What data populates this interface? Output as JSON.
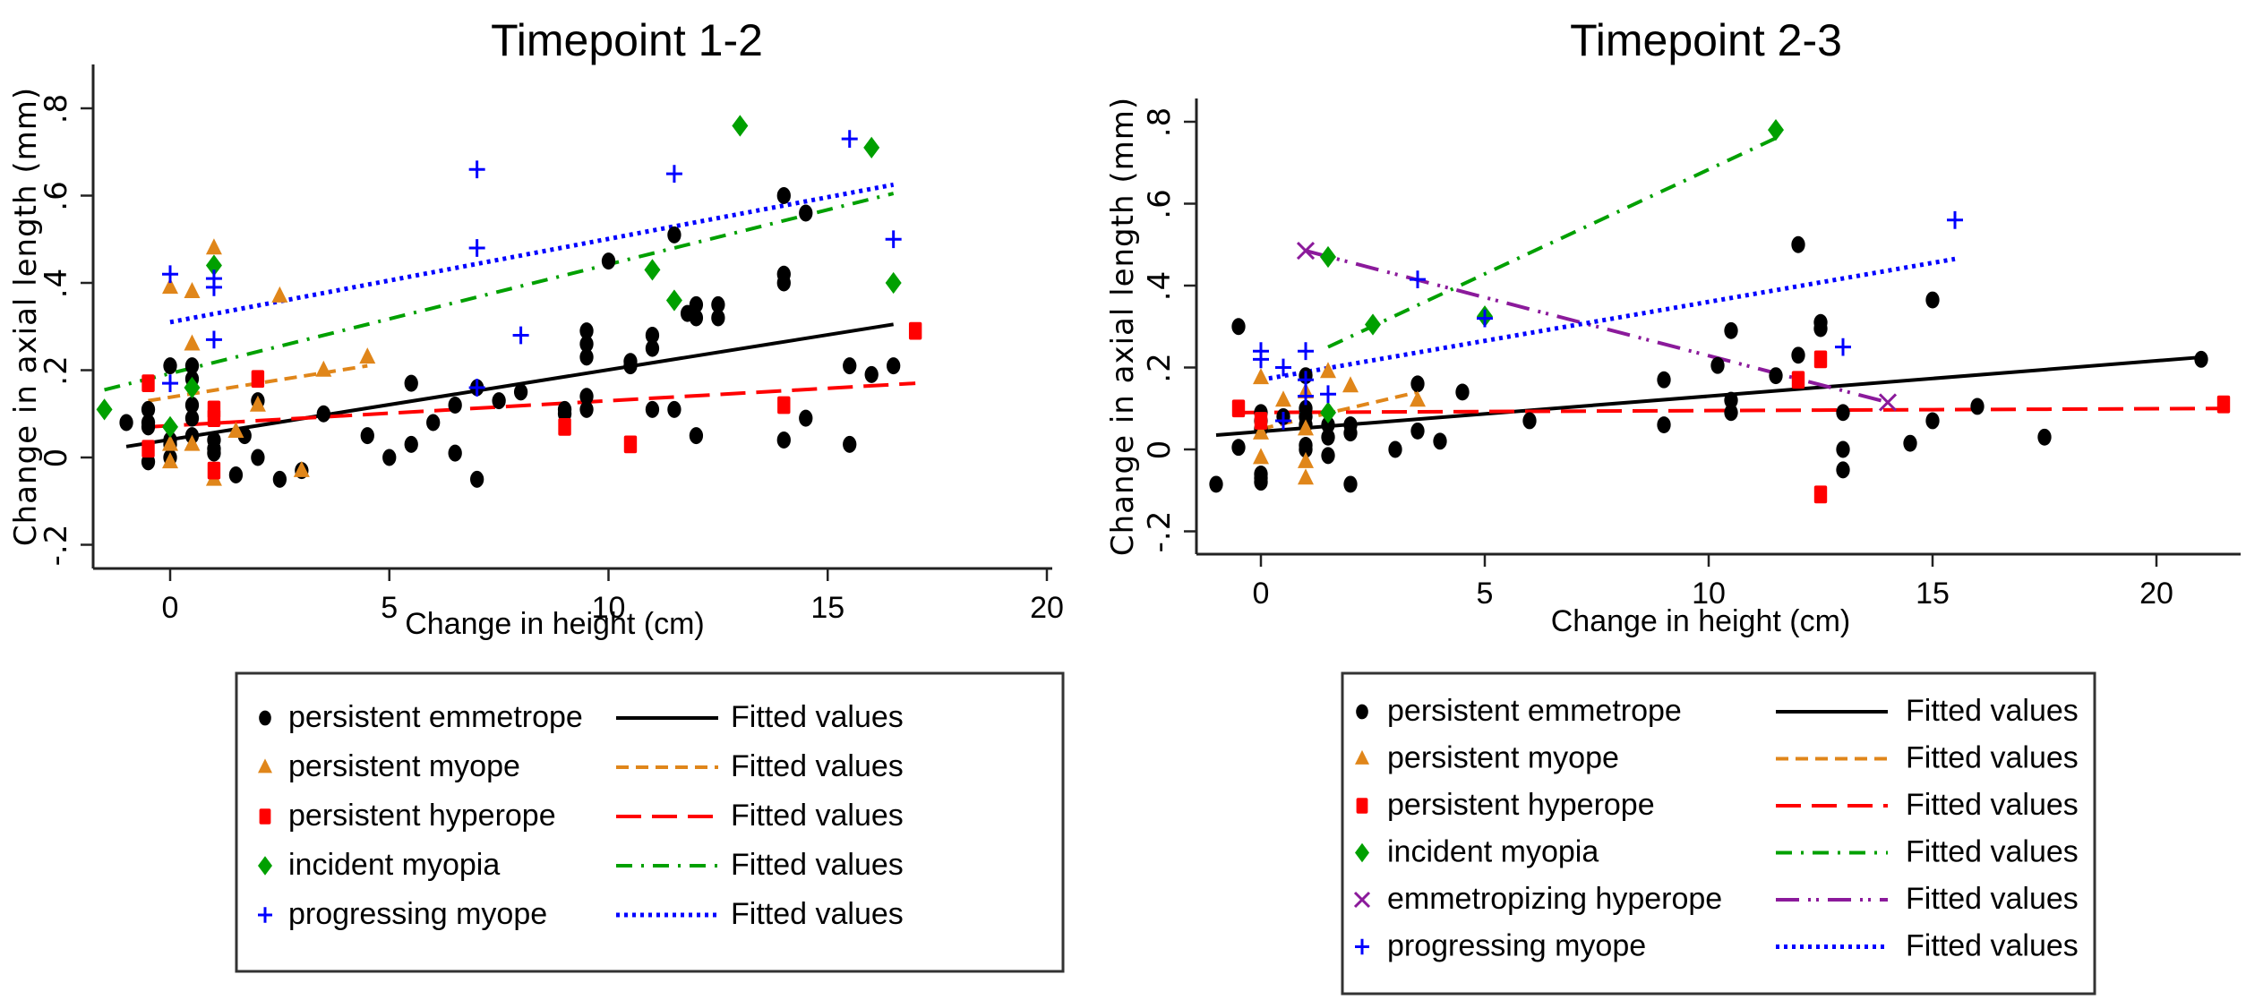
{
  "chart_data": [
    {
      "type": "scatter",
      "title": "Timepoint 1-2",
      "xlabel": "Change in height (cm)",
      "ylabel": "Change in axial length (mm)",
      "xlim": [
        -2,
        20
      ],
      "ylim": [
        -0.25,
        0.85
      ],
      "xticks": [
        0,
        5,
        10,
        15,
        20
      ],
      "xtick_labels": [
        "0",
        "5",
        "10",
        "15",
        "20"
      ],
      "yticks": [
        -0.2,
        0,
        0.2,
        0.4,
        0.6,
        0.8
      ],
      "ytick_labels": [
        "-.2",
        "0",
        ".2",
        ".4",
        ".6",
        ".8"
      ],
      "grid": false,
      "legend_position": "bottom",
      "series": [
        {
          "name": "persistent emmetrope",
          "marker": "circle",
          "color": "#000000",
          "points": [
            [
              -1,
              0.08
            ],
            [
              -0.5,
              0.11
            ],
            [
              -0.5,
              0.08
            ],
            [
              -0.5,
              0.07
            ],
            [
              -0.5,
              -0.01
            ],
            [
              0,
              0.21
            ],
            [
              0,
              0.04
            ],
            [
              0,
              0.03
            ],
            [
              0,
              0.0
            ],
            [
              0.5,
              0.21
            ],
            [
              0.5,
              0.18
            ],
            [
              0.5,
              0.12
            ],
            [
              0.5,
              0.09
            ],
            [
              0.5,
              0.05
            ],
            [
              1,
              0.04
            ],
            [
              1,
              0.02
            ],
            [
              1,
              0.01
            ],
            [
              1.5,
              -0.04
            ],
            [
              1.7,
              0.05
            ],
            [
              2,
              0.13
            ],
            [
              2,
              0.0
            ],
            [
              2.5,
              -0.05
            ],
            [
              3,
              -0.03
            ],
            [
              3.5,
              0.1
            ],
            [
              4.5,
              0.05
            ],
            [
              5,
              0.0
            ],
            [
              5.5,
              0.03
            ],
            [
              5.5,
              0.17
            ],
            [
              6,
              0.08
            ],
            [
              6.5,
              0.01
            ],
            [
              6.5,
              0.12
            ],
            [
              7,
              -0.05
            ],
            [
              7,
              0.16
            ],
            [
              7.5,
              0.13
            ],
            [
              8,
              0.15
            ],
            [
              9,
              0.11
            ],
            [
              9,
              0.1
            ],
            [
              9.5,
              0.29
            ],
            [
              9.5,
              0.26
            ],
            [
              9.5,
              0.23
            ],
            [
              9.5,
              0.14
            ],
            [
              9.5,
              0.11
            ],
            [
              10,
              0.45
            ],
            [
              10.5,
              0.22
            ],
            [
              10.5,
              0.21
            ],
            [
              11,
              0.28
            ],
            [
              11,
              0.25
            ],
            [
              11,
              0.11
            ],
            [
              11.5,
              0.51
            ],
            [
              11.5,
              0.11
            ],
            [
              11.8,
              0.33
            ],
            [
              12,
              0.35
            ],
            [
              12,
              0.32
            ],
            [
              12,
              0.05
            ],
            [
              12.5,
              0.35
            ],
            [
              12.5,
              0.32
            ],
            [
              14,
              0.6
            ],
            [
              14,
              0.42
            ],
            [
              14,
              0.4
            ],
            [
              14,
              0.04
            ],
            [
              14.5,
              0.56
            ],
            [
              14.5,
              0.09
            ],
            [
              15.5,
              0.21
            ],
            [
              15.5,
              0.03
            ],
            [
              16,
              0.19
            ],
            [
              16.5,
              0.21
            ]
          ],
          "fit": {
            "label": "Fitted values",
            "style": "solid",
            "from": [
              -1,
              0.025
            ],
            "to": [
              16.5,
              0.305
            ]
          }
        },
        {
          "name": "persistent myope",
          "marker": "triangle",
          "color": "#e0861a",
          "points": [
            [
              0,
              0.39
            ],
            [
              0,
              0.03
            ],
            [
              0,
              -0.01
            ],
            [
              0.5,
              0.38
            ],
            [
              0.5,
              0.26
            ],
            [
              0.5,
              0.03
            ],
            [
              1,
              0.48
            ],
            [
              1,
              -0.05
            ],
            [
              1.5,
              0.06
            ],
            [
              2,
              0.12
            ],
            [
              2.5,
              0.37
            ],
            [
              3,
              -0.03
            ],
            [
              3.5,
              0.2
            ],
            [
              4.5,
              0.23
            ]
          ],
          "fit": {
            "label": "Fitted values",
            "style": "short-dash",
            "from": [
              -0.5,
              0.13
            ],
            "to": [
              4.5,
              0.21
            ]
          }
        },
        {
          "name": "persistent hyperope",
          "marker": "square",
          "color": "#ff0000",
          "points": [
            [
              -0.5,
              0.17
            ],
            [
              -0.5,
              0.02
            ],
            [
              1,
              0.11
            ],
            [
              1,
              0.09
            ],
            [
              1,
              -0.03
            ],
            [
              2,
              0.18
            ],
            [
              9,
              0.07
            ],
            [
              10.5,
              0.03
            ],
            [
              14,
              0.12
            ],
            [
              17,
              0.29
            ]
          ],
          "fit": {
            "label": "Fitted values",
            "style": "long-dash",
            "from": [
              -0.5,
              0.07
            ],
            "to": [
              17,
              0.17
            ]
          }
        },
        {
          "name": "incident myopia",
          "marker": "diamond",
          "color": "#00a000",
          "points": [
            [
              -1.5,
              0.11
            ],
            [
              0,
              0.07
            ],
            [
              0.5,
              0.16
            ],
            [
              1,
              0.44
            ],
            [
              11,
              0.43
            ],
            [
              11.5,
              0.36
            ],
            [
              13,
              0.76
            ],
            [
              16,
              0.71
            ],
            [
              16.5,
              0.4
            ]
          ],
          "fit": {
            "label": "Fitted values",
            "style": "dash-dot",
            "from": [
              -1.5,
              0.155
            ],
            "to": [
              16.5,
              0.605
            ]
          }
        },
        {
          "name": "progressing myope",
          "marker": "plus",
          "color": "#0000ff",
          "points": [
            [
              0,
              0.42
            ],
            [
              0,
              0.17
            ],
            [
              1,
              0.41
            ],
            [
              1,
              0.39
            ],
            [
              1,
              0.27
            ],
            [
              7,
              0.66
            ],
            [
              7,
              0.48
            ],
            [
              7,
              0.16
            ],
            [
              8,
              0.28
            ],
            [
              11.5,
              0.65
            ],
            [
              15.5,
              0.73
            ],
            [
              16.5,
              0.5
            ]
          ],
          "fit": {
            "label": "Fitted values",
            "style": "dotted",
            "from": [
              0,
              0.31
            ],
            "to": [
              16.5,
              0.625
            ]
          }
        }
      ]
    },
    {
      "type": "scatter",
      "title": "Timepoint 2-3",
      "xlabel": "Change in height (cm)",
      "ylabel": "Change in axial length (mm)",
      "xlim": [
        -1.4,
        21.9
      ],
      "ylim": [
        -0.25,
        0.85
      ],
      "xticks": [
        0,
        5,
        10,
        15,
        20
      ],
      "xtick_labels": [
        "0",
        "5",
        "10",
        "15",
        "20"
      ],
      "yticks": [
        -0.2,
        0,
        0.2,
        0.4,
        0.6,
        0.8
      ],
      "ytick_labels": [
        "-.2",
        "0",
        ".2",
        ".4",
        ".6",
        ".8"
      ],
      "grid": false,
      "legend_position": "bottom",
      "series": [
        {
          "name": "persistent emmetrope",
          "marker": "circle",
          "color": "#000000",
          "points": [
            [
              -1,
              -0.085
            ],
            [
              -0.5,
              0.3
            ],
            [
              -0.5,
              0.005
            ],
            [
              0,
              0.09
            ],
            [
              0,
              0.07
            ],
            [
              0,
              0.05
            ],
            [
              0,
              -0.06
            ],
            [
              0,
              -0.07
            ],
            [
              0,
              -0.08
            ],
            [
              0.5,
              0.08
            ],
            [
              1,
              0.18
            ],
            [
              1,
              0.1
            ],
            [
              1,
              0.08
            ],
            [
              1,
              0.06
            ],
            [
              1,
              0.01
            ],
            [
              1,
              0.0
            ],
            [
              1.5,
              0.06
            ],
            [
              1.5,
              0.03
            ],
            [
              1.5,
              -0.015
            ],
            [
              2,
              0.06
            ],
            [
              2,
              0.04
            ],
            [
              2,
              -0.085
            ],
            [
              3,
              0.0
            ],
            [
              3.5,
              0.16
            ],
            [
              3.5,
              0.045
            ],
            [
              4,
              0.02
            ],
            [
              4.5,
              0.14
            ],
            [
              6,
              0.07
            ],
            [
              9,
              0.17
            ],
            [
              9,
              0.06
            ],
            [
              10.2,
              0.205
            ],
            [
              10.5,
              0.29
            ],
            [
              10.5,
              0.12
            ],
            [
              10.5,
              0.09
            ],
            [
              11.5,
              0.18
            ],
            [
              12,
              0.5
            ],
            [
              12,
              0.23
            ],
            [
              12.5,
              0.31
            ],
            [
              12.5,
              0.295
            ],
            [
              13,
              0.09
            ],
            [
              13,
              0.0
            ],
            [
              13,
              -0.05
            ],
            [
              14.5,
              0.015
            ],
            [
              15,
              0.365
            ],
            [
              15,
              0.07
            ],
            [
              16,
              0.105
            ],
            [
              17.5,
              0.03
            ],
            [
              21,
              0.22
            ]
          ],
          "fit": {
            "label": "Fitted values",
            "style": "solid",
            "from": [
              -1,
              0.035
            ],
            "to": [
              21,
              0.225
            ]
          }
        },
        {
          "name": "persistent myope",
          "marker": "triangle",
          "color": "#e0861a",
          "points": [
            [
              0,
              0.175
            ],
            [
              0,
              0.04
            ],
            [
              0,
              -0.02
            ],
            [
              0.5,
              0.12
            ],
            [
              1,
              0.14
            ],
            [
              1,
              0.05
            ],
            [
              1,
              -0.03
            ],
            [
              1,
              -0.07
            ],
            [
              1.5,
              0.19
            ],
            [
              2,
              0.155
            ],
            [
              3.5,
              0.12
            ]
          ],
          "fit": {
            "label": "Fitted values",
            "style": "short-dash",
            "from": [
              0,
              0.05
            ],
            "to": [
              3.5,
              0.14
            ]
          }
        },
        {
          "name": "persistent hyperope",
          "marker": "square",
          "color": "#ff0000",
          "points": [
            [
              -0.5,
              0.1
            ],
            [
              0,
              0.07
            ],
            [
              12,
              0.17
            ],
            [
              12.5,
              0.22
            ],
            [
              12.5,
              -0.11
            ],
            [
              21.5,
              0.11
            ]
          ],
          "fit": {
            "label": "Fitted values",
            "style": "long-dash",
            "from": [
              -0.5,
              0.09
            ],
            "to": [
              21.5,
              0.1
            ]
          }
        },
        {
          "name": "incident myopia",
          "marker": "diamond",
          "color": "#00a000",
          "points": [
            [
              1.5,
              0.47
            ],
            [
              1.5,
              0.09
            ],
            [
              2.5,
              0.305
            ],
            [
              5,
              0.325
            ],
            [
              11.5,
              0.78
            ]
          ],
          "fit": {
            "label": "Fitted values",
            "style": "dash-dot",
            "from": [
              1.5,
              0.25
            ],
            "to": [
              11.5,
              0.76
            ]
          }
        },
        {
          "name": "emmetropizing hyperope",
          "marker": "x",
          "color": "#8b1a9b",
          "points": [
            [
              1,
              0.485
            ],
            [
              14,
              0.115
            ]
          ],
          "fit": {
            "label": "Fitted values",
            "style": "long-dash-dot",
            "from": [
              1,
              0.485
            ],
            "to": [
              14,
              0.115
            ]
          }
        },
        {
          "name": "progressing myope",
          "marker": "plus",
          "color": "#0000ff",
          "points": [
            [
              0,
              0.24
            ],
            [
              0,
              0.22
            ],
            [
              0.5,
              0.2
            ],
            [
              0.5,
              0.07
            ],
            [
              1,
              0.24
            ],
            [
              1,
              0.17
            ],
            [
              1,
              0.13
            ],
            [
              1.5,
              0.135
            ],
            [
              3.5,
              0.415
            ],
            [
              5,
              0.32
            ],
            [
              13,
              0.25
            ],
            [
              15.5,
              0.56
            ]
          ],
          "fit": {
            "label": "Fitted values",
            "style": "dotted",
            "from": [
              0,
              0.17
            ],
            "to": [
              15.5,
              0.465
            ]
          }
        }
      ]
    }
  ]
}
